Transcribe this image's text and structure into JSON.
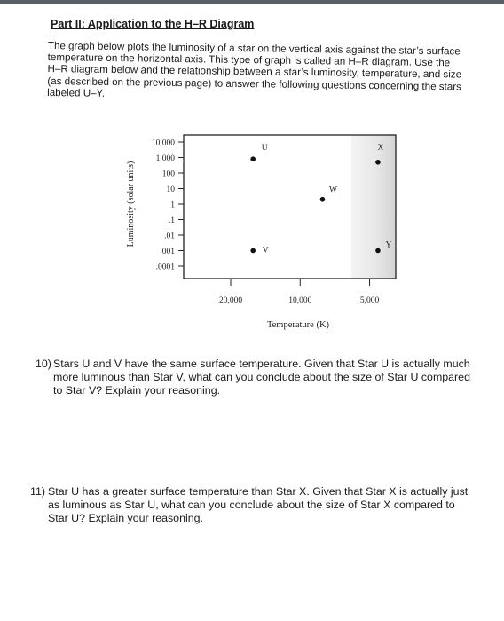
{
  "section": {
    "title": "Part II: Application to the H–R Diagram",
    "intro_lines": [
      "The graph below plots the luminosity of a star on the vertical axis against the star’s surface",
      "temperature on the horizontal axis. This type of graph is called an H–R diagram. Use the",
      "H–R diagram below and the relationship between a star’s luminosity, temperature, and size",
      "(as described on the previous page) to answer the following questions concerning the stars",
      "labeled U–Y."
    ]
  },
  "chart_data": {
    "type": "scatter",
    "title": "",
    "xlabel": "Temperature (K)",
    "ylabel": "Luminosity (solar units)",
    "x_scale": "log-reversed",
    "y_scale": "log",
    "y_ticks": [
      {
        "value": 10000,
        "label": "10,000"
      },
      {
        "value": 1000,
        "label": "1,000"
      },
      {
        "value": 100,
        "label": "100"
      },
      {
        "value": 10,
        "label": "10"
      },
      {
        "value": 1,
        "label": "1"
      },
      {
        "value": 0.1,
        "label": ".1"
      },
      {
        "value": 0.01,
        "label": ".01"
      },
      {
        "value": 0.001,
        "label": ".001"
      },
      {
        "value": 0.0001,
        "label": ".0001"
      }
    ],
    "x_ticks": [
      {
        "value": 20000,
        "label": "20,000"
      },
      {
        "value": 10000,
        "label": "10,000"
      },
      {
        "value": 5000,
        "label": "5,000"
      }
    ],
    "points": [
      {
        "label": "U",
        "x": 16000,
        "y": 800
      },
      {
        "label": "V",
        "x": 16000,
        "y": 0.001
      },
      {
        "label": "W",
        "x": 8000,
        "y": 2
      },
      {
        "label": "X",
        "x": 4600,
        "y": 500
      },
      {
        "label": "Y",
        "x": 4600,
        "y": 0.001
      }
    ],
    "legend": "none",
    "grid": false
  },
  "questions": [
    {
      "number": "10)",
      "lines": [
        "Stars U and V have the same surface temperature. Given that Star U is actually much",
        "more luminous than Star V, what can you conclude about the size of Star U compared",
        "to Star V? Explain your reasoning."
      ]
    },
    {
      "number": "11)",
      "lines": [
        "Star U has a greater surface temperature than Star X. Given that Star X is actually just",
        "as luminous as Star U, what can you conclude about the size of Star X compared to",
        "Star U? Explain your reasoning."
      ]
    }
  ]
}
